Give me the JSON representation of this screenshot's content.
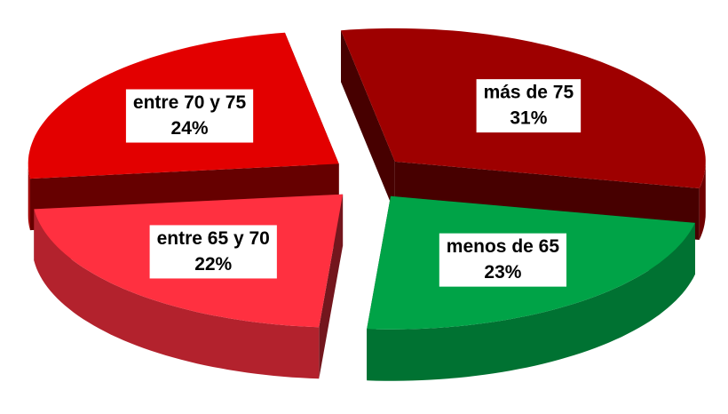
{
  "chart_data": {
    "type": "pie",
    "categories": [
      "más de 75",
      "menos de 65",
      "entre 65 y 70",
      "entre 70 y 75"
    ],
    "values": [
      31,
      23,
      22,
      24
    ],
    "value_labels": [
      "31%",
      "23%",
      "22%",
      "24%"
    ],
    "colors": [
      "#9e0000",
      "#00a347",
      "#ff3040",
      "#e30000"
    ]
  }
}
